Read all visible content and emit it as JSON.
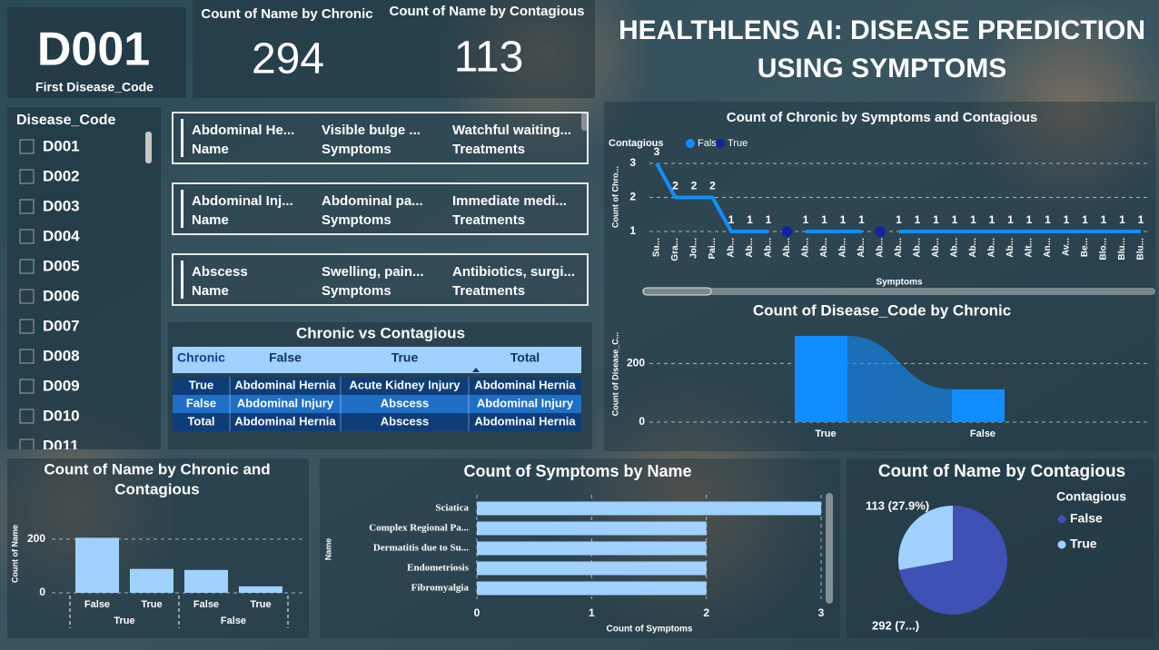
{
  "title": [
    "HEALTHLENS AI: DISEASE PREDICTION",
    "USING SYMPTOMS"
  ],
  "cards": [
    {
      "value": "D001",
      "label": "First Disease_Code"
    },
    {
      "label": "Count of Name by Chronic",
      "value": 294
    },
    {
      "label": "Count of Name by Contagious",
      "value": 113
    }
  ],
  "slicer": {
    "title": "Disease_Code",
    "items": [
      "D001",
      "D002",
      "D003",
      "D004",
      "D005",
      "D006",
      "D007",
      "D008",
      "D009",
      "D010",
      "D011"
    ]
  },
  "detail_cards": {
    "labels": [
      "Name",
      "Symptoms",
      "Treatments"
    ],
    "rows": [
      [
        "Abdominal He...",
        "Visible bulge ...",
        "Watchful waiting..."
      ],
      [
        "Abdominal Inj...",
        "Abdominal pa...",
        "Immediate medi..."
      ],
      [
        "Abscess",
        "Swelling, pain...",
        "Antibiotics, surgi..."
      ]
    ]
  },
  "matrix": {
    "title": "Chronic vs Contagious",
    "header": [
      "Chronic",
      "False",
      "True",
      "Total"
    ],
    "rows": [
      [
        "True",
        "Abdominal Hernia",
        "Acute Kidney Injury",
        "Abdominal Hernia"
      ],
      [
        "False",
        "Abdominal Injury",
        "Abscess",
        "Abdominal Injury"
      ],
      [
        "Total",
        "Abdominal Hernia",
        "Abscess",
        "Abdominal Hernia"
      ]
    ]
  },
  "chart_data": [
    {
      "type": "line",
      "title": "Count of Chronic by Symptoms and Contagious",
      "x_label": "Symptoms",
      "y_label": "Count of Chro...",
      "legend_title": "Contagious",
      "categories": [
        "Su...",
        "Gra...",
        "Joi...",
        "Pai...",
        "Ab...",
        "Ab...",
        "Ab...",
        "Ab...",
        "Ab...",
        "Ab...",
        "Ab...",
        "Ab...",
        "Ab...",
        "Ab...",
        "Ab...",
        "Ab...",
        "Ab...",
        "Ab...",
        "Ab...",
        "Ab...",
        "Alt...",
        "An...",
        "Av...",
        "Be...",
        "Blo...",
        "Blu...",
        "Blu..."
      ],
      "series": [
        {
          "name": "False",
          "color": "#118dff",
          "data_labels": true,
          "values": [
            3,
            2,
            2,
            2,
            1,
            1,
            1,
            null,
            1,
            1,
            1,
            1,
            null,
            1,
            1,
            1,
            1,
            1,
            1,
            1,
            1,
            1,
            1,
            1,
            1,
            1,
            1
          ]
        },
        {
          "name": "True",
          "color": "#12239e",
          "data_labels": false,
          "values": [
            null,
            null,
            null,
            null,
            null,
            null,
            null,
            1,
            null,
            null,
            null,
            null,
            1,
            null,
            null,
            null,
            null,
            null,
            null,
            null,
            null,
            null,
            null,
            null,
            null,
            null,
            null
          ]
        }
      ],
      "ylim": [
        1,
        3
      ],
      "yticks": [
        1,
        2,
        3
      ],
      "grid": true
    },
    {
      "type": "ribbon",
      "title": "Count of Disease_Code by Chronic",
      "y_label": "Count of Disease_C...",
      "categories": [
        "True",
        "False"
      ],
      "values": [
        294,
        112
      ],
      "color": "#118dff",
      "ylim": [
        0,
        300
      ],
      "yticks": [
        0,
        200
      ],
      "grid": true
    },
    {
      "type": "bar",
      "title": [
        "Count of Name by Chronic and",
        "Contagious"
      ],
      "y_label": "Count of Name",
      "groups": [
        "True",
        "False"
      ],
      "categories": [
        "False",
        "True",
        "False",
        "True"
      ],
      "values": [
        205,
        89,
        85,
        24
      ],
      "color": "#a0d1ff",
      "ylim": [
        0,
        240
      ],
      "yticks": [
        0,
        200
      ],
      "grid": true
    },
    {
      "type": "hbar",
      "title": "Count of Symptoms by Name",
      "x_label": "Count of Symptoms",
      "y_label": "Name",
      "categories": [
        "Sciatica",
        "Complex Regional Pa...",
        "Dermatitis due to Su...",
        "Endometriosis",
        "Fibromyalgia"
      ],
      "values": [
        3,
        2,
        2,
        2,
        2
      ],
      "color": "#a0d1ff",
      "xlim": [
        0,
        3
      ],
      "xticks": [
        0,
        1,
        2,
        3
      ],
      "grid": true
    },
    {
      "type": "pie",
      "title": "Count of Name by Contagious",
      "legend_title": "Contagious",
      "categories": [
        "False",
        "True"
      ],
      "values": [
        292,
        113
      ],
      "value_labels": [
        "292 (7...)",
        "113 (27.9%)"
      ],
      "colors": [
        "#3f51b5",
        "#a0d1ff"
      ]
    }
  ]
}
